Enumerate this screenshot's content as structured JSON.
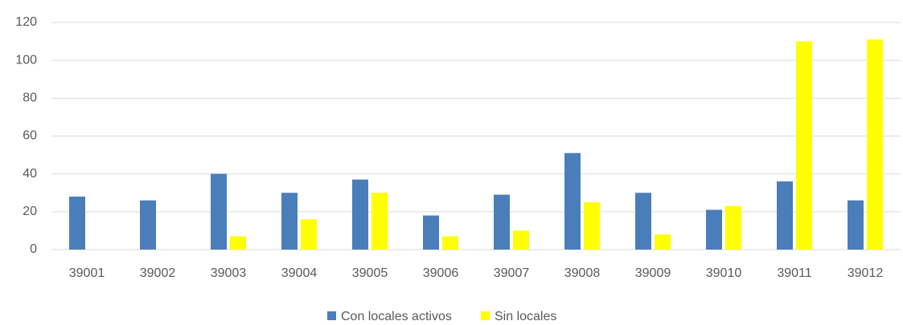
{
  "chart_data": {
    "type": "bar",
    "categories": [
      "39001",
      "39002",
      "39003",
      "39004",
      "39005",
      "39006",
      "39007",
      "39008",
      "39009",
      "39010",
      "39011",
      "39012"
    ],
    "series": [
      {
        "name": "Con locales activos",
        "color": "#4a7ebb",
        "values": [
          28,
          26,
          40,
          30,
          37,
          18,
          29,
          51,
          30,
          21,
          36,
          26
        ]
      },
      {
        "name": "Sin locales",
        "color": "#ffff00",
        "values": [
          0,
          0,
          7,
          16,
          30,
          7,
          10,
          25,
          8,
          23,
          110,
          111
        ]
      }
    ],
    "ylim": [
      0,
      120
    ],
    "yticks": [
      0,
      20,
      40,
      60,
      80,
      100,
      120
    ],
    "grid": true,
    "legend": "bottom"
  }
}
